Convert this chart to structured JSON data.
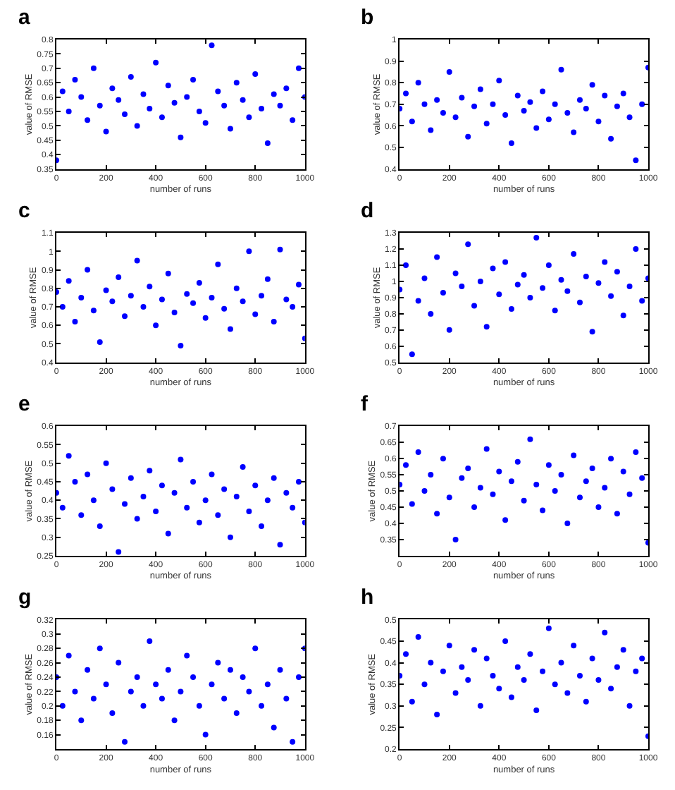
{
  "chart_data": [
    {
      "type": "scatter",
      "title": "a",
      "xlabel": "number of runs",
      "ylabel": "value of RMSE",
      "marker": "circle",
      "xlim": [
        0,
        1000
      ],
      "xticks": [
        0,
        200,
        400,
        600,
        800,
        1000
      ],
      "ylim": [
        0.35,
        0.8
      ],
      "yticks": [
        0.35,
        0.4,
        0.45,
        0.5,
        0.55,
        0.6,
        0.65,
        0.7,
        0.75,
        0.8
      ],
      "x": [
        0,
        25,
        50,
        75,
        100,
        125,
        150,
        175,
        200,
        225,
        250,
        275,
        300,
        325,
        350,
        375,
        400,
        425,
        450,
        475,
        500,
        525,
        550,
        575,
        600,
        625,
        650,
        675,
        700,
        725,
        750,
        775,
        800,
        825,
        850,
        875,
        900,
        925,
        950,
        975,
        1000
      ],
      "series": [
        {
          "color": "#0000ff",
          "values": [
            0.38,
            0.62,
            0.55,
            0.66,
            0.6,
            0.52,
            0.7,
            0.57,
            0.48,
            0.63,
            0.59,
            0.54,
            0.67,
            0.5,
            0.61,
            0.56,
            0.72,
            0.53,
            0.64,
            0.58,
            0.46,
            0.6,
            0.66,
            0.55,
            0.51,
            0.78,
            0.62,
            0.57,
            0.49,
            0.65,
            0.59,
            0.53,
            0.68,
            0.56,
            0.44,
            0.61,
            0.57,
            0.63,
            0.52,
            0.7,
            0.6
          ]
        }
      ]
    },
    {
      "type": "scatter",
      "title": "b",
      "xlabel": "number of runs",
      "ylabel": "value of RMSE",
      "marker": "circle",
      "xlim": [
        0,
        1000
      ],
      "xticks": [
        0,
        200,
        400,
        600,
        800,
        1000
      ],
      "ylim": [
        0.4,
        1
      ],
      "yticks": [
        0.4,
        0.5,
        0.6,
        0.7,
        0.8,
        0.9,
        1
      ],
      "x": [
        0,
        25,
        50,
        75,
        100,
        125,
        150,
        175,
        200,
        225,
        250,
        275,
        300,
        325,
        350,
        375,
        400,
        425,
        450,
        475,
        500,
        525,
        550,
        575,
        600,
        625,
        650,
        675,
        700,
        725,
        750,
        775,
        800,
        825,
        850,
        875,
        900,
        925,
        950,
        975,
        1000
      ],
      "series": [
        {
          "color": "#0000ff",
          "values": [
            0.68,
            0.75,
            0.62,
            0.8,
            0.7,
            0.58,
            0.72,
            0.66,
            0.85,
            0.64,
            0.73,
            0.55,
            0.69,
            0.77,
            0.61,
            0.7,
            0.81,
            0.65,
            0.52,
            0.74,
            0.67,
            0.71,
            0.59,
            0.76,
            0.63,
            0.7,
            0.86,
            0.66,
            0.57,
            0.72,
            0.68,
            0.79,
            0.62,
            0.74,
            0.54,
            0.69,
            0.75,
            0.64,
            0.44,
            0.7,
            0.87
          ]
        }
      ]
    },
    {
      "type": "scatter",
      "title": "c",
      "xlabel": "number of runs",
      "ylabel": "value of RMSE",
      "marker": "circle",
      "xlim": [
        0,
        1000
      ],
      "xticks": [
        0,
        200,
        400,
        600,
        800,
        1000
      ],
      "ylim": [
        0.4,
        1.1
      ],
      "yticks": [
        0.4,
        0.5,
        0.6,
        0.7,
        0.8,
        0.9,
        1,
        1.1
      ],
      "x": [
        0,
        25,
        50,
        75,
        100,
        125,
        150,
        175,
        200,
        225,
        250,
        275,
        300,
        325,
        350,
        375,
        400,
        425,
        450,
        475,
        500,
        525,
        550,
        575,
        600,
        625,
        650,
        675,
        700,
        725,
        750,
        775,
        800,
        825,
        850,
        875,
        900,
        925,
        950,
        975,
        1000
      ],
      "series": [
        {
          "color": "#0000ff",
          "values": [
            0.78,
            0.7,
            0.84,
            0.62,
            0.75,
            0.9,
            0.68,
            0.51,
            0.79,
            0.73,
            0.86,
            0.65,
            0.76,
            0.95,
            0.7,
            0.81,
            0.6,
            0.74,
            0.88,
            0.67,
            0.49,
            0.77,
            0.72,
            0.83,
            0.64,
            0.75,
            0.93,
            0.69,
            0.58,
            0.8,
            0.73,
            1.0,
            0.66,
            0.76,
            0.85,
            0.62,
            1.01,
            0.74,
            0.7,
            0.82,
            0.53
          ]
        }
      ]
    },
    {
      "type": "scatter",
      "title": "d",
      "xlabel": "number of runs",
      "ylabel": "value of RMSE",
      "marker": "circle",
      "xlim": [
        0,
        1000
      ],
      "xticks": [
        0,
        200,
        400,
        600,
        800,
        1000
      ],
      "ylim": [
        0.5,
        1.3
      ],
      "yticks": [
        0.5,
        0.6,
        0.7,
        0.8,
        0.9,
        1,
        1.1,
        1.2,
        1.3
      ],
      "x": [
        0,
        25,
        50,
        75,
        100,
        125,
        150,
        175,
        200,
        225,
        250,
        275,
        300,
        325,
        350,
        375,
        400,
        425,
        450,
        475,
        500,
        525,
        550,
        575,
        600,
        625,
        650,
        675,
        700,
        725,
        750,
        775,
        800,
        825,
        850,
        875,
        900,
        925,
        950,
        975,
        1000
      ],
      "series": [
        {
          "color": "#0000ff",
          "values": [
            0.95,
            1.1,
            0.55,
            0.88,
            1.02,
            0.8,
            1.15,
            0.93,
            0.7,
            1.05,
            0.97,
            1.23,
            0.85,
            1.0,
            0.72,
            1.08,
            0.92,
            1.12,
            0.83,
            0.98,
            1.04,
            0.9,
            1.27,
            0.96,
            1.1,
            0.82,
            1.01,
            0.94,
            1.17,
            0.87,
            1.03,
            0.69,
            0.99,
            1.12,
            0.91,
            1.06,
            0.79,
            0.97,
            1.2,
            0.88,
            1.02
          ]
        }
      ]
    },
    {
      "type": "scatter",
      "title": "e",
      "xlabel": "number of runs",
      "ylabel": "value of RMSE",
      "marker": "circle",
      "xlim": [
        0,
        1000
      ],
      "xticks": [
        0,
        200,
        400,
        600,
        800,
        1000
      ],
      "ylim": [
        0.25,
        0.6
      ],
      "yticks": [
        0.25,
        0.3,
        0.35,
        0.4,
        0.45,
        0.5,
        0.55,
        0.6
      ],
      "x": [
        0,
        25,
        50,
        75,
        100,
        125,
        150,
        175,
        200,
        225,
        250,
        275,
        300,
        325,
        350,
        375,
        400,
        425,
        450,
        475,
        500,
        525,
        550,
        575,
        600,
        625,
        650,
        675,
        700,
        725,
        750,
        775,
        800,
        825,
        850,
        875,
        900,
        925,
        950,
        975,
        1000
      ],
      "series": [
        {
          "color": "#0000ff",
          "values": [
            0.42,
            0.38,
            0.52,
            0.45,
            0.36,
            0.47,
            0.4,
            0.33,
            0.5,
            0.43,
            0.26,
            0.39,
            0.46,
            0.35,
            0.41,
            0.48,
            0.37,
            0.44,
            0.31,
            0.42,
            0.51,
            0.38,
            0.45,
            0.34,
            0.4,
            0.47,
            0.36,
            0.43,
            0.3,
            0.41,
            0.49,
            0.37,
            0.44,
            0.33,
            0.4,
            0.46,
            0.28,
            0.42,
            0.38,
            0.45,
            0.34
          ]
        }
      ]
    },
    {
      "type": "scatter",
      "title": "f",
      "xlabel": "number of runs",
      "ylabel": "value of RMSE",
      "marker": "circle",
      "xlim": [
        0,
        1000
      ],
      "xticks": [
        0,
        200,
        400,
        600,
        800,
        1000
      ],
      "ylim": [
        0.3,
        0.7
      ],
      "yticks": [
        0.35,
        0.4,
        0.45,
        0.5,
        0.55,
        0.6,
        0.65,
        0.7
      ],
      "x": [
        0,
        25,
        50,
        75,
        100,
        125,
        150,
        175,
        200,
        225,
        250,
        275,
        300,
        325,
        350,
        375,
        400,
        425,
        450,
        475,
        500,
        525,
        550,
        575,
        600,
        625,
        650,
        675,
        700,
        725,
        750,
        775,
        800,
        825,
        850,
        875,
        900,
        925,
        950,
        975,
        1000
      ],
      "series": [
        {
          "color": "#0000ff",
          "values": [
            0.52,
            0.58,
            0.46,
            0.62,
            0.5,
            0.55,
            0.43,
            0.6,
            0.48,
            0.35,
            0.54,
            0.57,
            0.45,
            0.51,
            0.63,
            0.49,
            0.56,
            0.41,
            0.53,
            0.59,
            0.47,
            0.66,
            0.52,
            0.44,
            0.58,
            0.5,
            0.55,
            0.4,
            0.61,
            0.48,
            0.53,
            0.57,
            0.45,
            0.51,
            0.6,
            0.43,
            0.56,
            0.49,
            0.62,
            0.54,
            0.34
          ]
        }
      ]
    },
    {
      "type": "scatter",
      "title": "g",
      "xlabel": "number of runs",
      "ylabel": "value of RMSE",
      "marker": "circle",
      "xlim": [
        0,
        1000
      ],
      "xticks": [
        0,
        200,
        400,
        600,
        800,
        1000
      ],
      "ylim": [
        0.14,
        0.32
      ],
      "yticks": [
        0.16,
        0.18,
        0.2,
        0.22,
        0.24,
        0.26,
        0.28,
        0.3,
        0.32
      ],
      "x": [
        0,
        25,
        50,
        75,
        100,
        125,
        150,
        175,
        200,
        225,
        250,
        275,
        300,
        325,
        350,
        375,
        400,
        425,
        450,
        475,
        500,
        525,
        550,
        575,
        600,
        625,
        650,
        675,
        700,
        725,
        750,
        775,
        800,
        825,
        850,
        875,
        900,
        925,
        950,
        975,
        1000
      ],
      "series": [
        {
          "color": "#0000ff",
          "values": [
            0.24,
            0.2,
            0.27,
            0.22,
            0.18,
            0.25,
            0.21,
            0.28,
            0.23,
            0.19,
            0.26,
            0.15,
            0.22,
            0.24,
            0.2,
            0.29,
            0.23,
            0.21,
            0.25,
            0.18,
            0.22,
            0.27,
            0.24,
            0.2,
            0.16,
            0.23,
            0.26,
            0.21,
            0.25,
            0.19,
            0.24,
            0.22,
            0.28,
            0.2,
            0.23,
            0.17,
            0.25,
            0.21,
            0.15,
            0.24,
            0.28
          ]
        }
      ]
    },
    {
      "type": "scatter",
      "title": "h",
      "xlabel": "number of runs",
      "ylabel": "value of RMSE",
      "marker": "circle",
      "xlim": [
        0,
        1000
      ],
      "xticks": [
        0,
        200,
        400,
        600,
        800,
        1000
      ],
      "ylim": [
        0.2,
        0.5
      ],
      "yticks": [
        0.2,
        0.25,
        0.3,
        0.35,
        0.4,
        0.45,
        0.5
      ],
      "x": [
        0,
        25,
        50,
        75,
        100,
        125,
        150,
        175,
        200,
        225,
        250,
        275,
        300,
        325,
        350,
        375,
        400,
        425,
        450,
        475,
        500,
        525,
        550,
        575,
        600,
        625,
        650,
        675,
        700,
        725,
        750,
        775,
        800,
        825,
        850,
        875,
        900,
        925,
        950,
        975,
        1000
      ],
      "series": [
        {
          "color": "#0000ff",
          "values": [
            0.37,
            0.42,
            0.31,
            0.46,
            0.35,
            0.4,
            0.28,
            0.38,
            0.44,
            0.33,
            0.39,
            0.36,
            0.43,
            0.3,
            0.41,
            0.37,
            0.34,
            0.45,
            0.32,
            0.39,
            0.36,
            0.42,
            0.29,
            0.38,
            0.48,
            0.35,
            0.4,
            0.33,
            0.44,
            0.37,
            0.31,
            0.41,
            0.36,
            0.47,
            0.34,
            0.39,
            0.43,
            0.3,
            0.38,
            0.41,
            0.23
          ]
        }
      ]
    }
  ]
}
